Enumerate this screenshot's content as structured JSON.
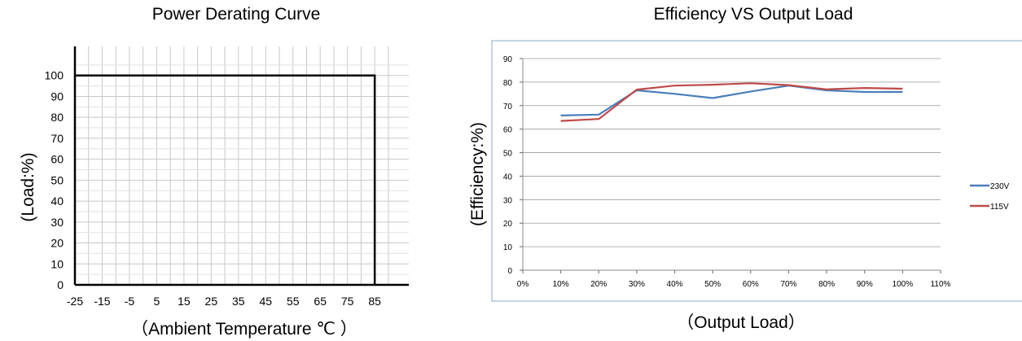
{
  "charts": {
    "derating": {
      "title": "Power Derating Curve",
      "ylabel": "(Load:%)",
      "xlabel": "（Ambient Temperature ℃ ）"
    },
    "efficiency": {
      "title": "Efficiency VS Output Load",
      "ylabel": "(Efficiency:%)",
      "xlabel": "（Output Load）"
    }
  },
  "chart_data": [
    {
      "type": "line",
      "title": "Power Derating Curve",
      "xlabel": "（Ambient Temperature ℃ ）",
      "ylabel": "(Load:%)",
      "x_ticks": [
        "-25",
        "-15",
        "-5",
        "5",
        "15",
        "25",
        "35",
        "45",
        "55",
        "65",
        "75",
        "85"
      ],
      "y_ticks": [
        "0",
        "10",
        "20",
        "30",
        "40",
        "50",
        "60",
        "70",
        "80",
        "90",
        "100"
      ],
      "xlim": [
        -25,
        85
      ],
      "ylim": [
        0,
        110
      ],
      "grid": true,
      "series": [
        {
          "x": [
            -25,
            85,
            85
          ],
          "y": [
            100,
            100,
            0
          ],
          "color": "#000000"
        }
      ]
    },
    {
      "type": "line",
      "title": "Efficiency VS Output Load",
      "xlabel": "（Output Load）",
      "ylabel": "(Efficiency:%)",
      "x_ticks": [
        "0%",
        "10%",
        "20%",
        "30%",
        "40%",
        "50%",
        "60%",
        "70%",
        "80%",
        "90%",
        "100%",
        "110%"
      ],
      "y_ticks": [
        "0",
        "10",
        "20",
        "30",
        "40",
        "50",
        "60",
        "70",
        "80",
        "90"
      ],
      "xlim": [
        0,
        110
      ],
      "ylim": [
        0,
        90
      ],
      "grid": true,
      "legend": "right",
      "series": [
        {
          "name": "230V",
          "color": "#4a7ebb",
          "x": [
            10,
            20,
            30,
            40,
            50,
            60,
            70,
            80,
            90,
            100
          ],
          "y": [
            65.8,
            66.2,
            76.5,
            75.0,
            73.2,
            76.0,
            78.5,
            76.5,
            75.8,
            75.8
          ]
        },
        {
          "name": "115V",
          "color": "#be4b48",
          "x": [
            10,
            20,
            30,
            40,
            50,
            60,
            70,
            80,
            90,
            100
          ],
          "y": [
            63.5,
            64.3,
            76.8,
            78.5,
            78.9,
            79.5,
            78.7,
            76.9,
            77.5,
            77.2
          ]
        }
      ]
    }
  ]
}
